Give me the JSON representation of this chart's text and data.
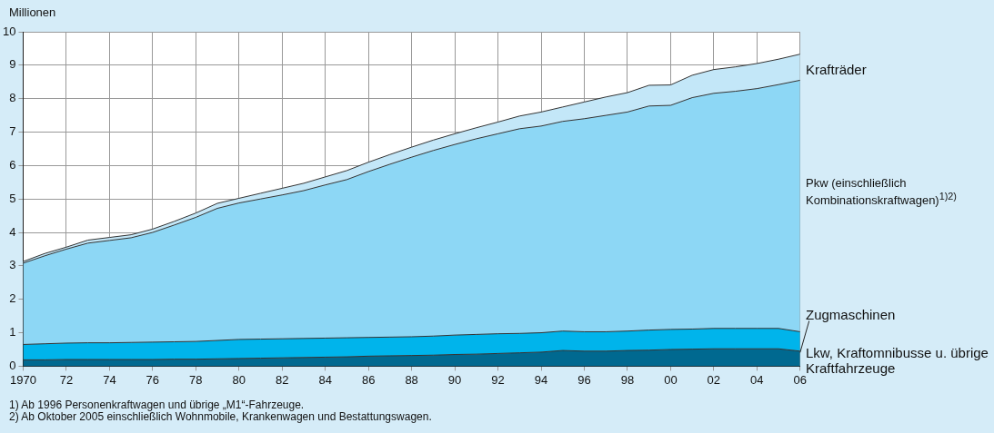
{
  "chart_data": {
    "type": "area",
    "stacked": true,
    "ylabel": "Millionen",
    "x": [
      1970,
      1971,
      1972,
      1973,
      1974,
      1975,
      1976,
      1977,
      1978,
      1979,
      1980,
      1981,
      1982,
      1983,
      1984,
      1985,
      1986,
      1987,
      1988,
      1989,
      1990,
      1991,
      1992,
      1993,
      1994,
      1995,
      1996,
      1997,
      1998,
      1999,
      2000,
      2001,
      2002,
      2003,
      2004,
      2005,
      2006
    ],
    "series": [
      {
        "name": "Lkw, Kraftomnibusse u. übrige Kraftfahrzeuge",
        "color": "#006990",
        "values": [
          0.19,
          0.19,
          0.2,
          0.2,
          0.2,
          0.2,
          0.2,
          0.21,
          0.21,
          0.22,
          0.23,
          0.24,
          0.25,
          0.26,
          0.27,
          0.28,
          0.3,
          0.31,
          0.32,
          0.33,
          0.35,
          0.36,
          0.38,
          0.4,
          0.42,
          0.47,
          0.45,
          0.45,
          0.47,
          0.48,
          0.5,
          0.51,
          0.52,
          0.52,
          0.52,
          0.52,
          0.45
        ]
      },
      {
        "name": "Zugmaschinen",
        "color": "#00b4eb",
        "values": [
          0.46,
          0.48,
          0.49,
          0.5,
          0.5,
          0.51,
          0.52,
          0.52,
          0.53,
          0.55,
          0.57,
          0.57,
          0.57,
          0.57,
          0.57,
          0.57,
          0.56,
          0.56,
          0.56,
          0.57,
          0.58,
          0.59,
          0.59,
          0.58,
          0.58,
          0.58,
          0.58,
          0.58,
          0.58,
          0.6,
          0.6,
          0.6,
          0.61,
          0.61,
          0.61,
          0.61,
          0.58
        ]
      },
      {
        "name": "Pkw (einschließlich Kombinationskraftwagen)$^{1)2)}$",
        "color": "#8dd7f5",
        "values": [
          2.43,
          2.63,
          2.81,
          2.98,
          3.06,
          3.13,
          3.28,
          3.49,
          3.71,
          3.95,
          4.08,
          4.19,
          4.3,
          4.42,
          4.58,
          4.73,
          4.96,
          5.17,
          5.37,
          5.55,
          5.7,
          5.85,
          5.98,
          6.12,
          6.18,
          6.27,
          6.37,
          6.47,
          6.55,
          6.7,
          6.7,
          6.92,
          7.03,
          7.09,
          7.17,
          7.29,
          7.52
        ]
      },
      {
        "name": "Krafträder",
        "color": "#c3e7f8",
        "values": [
          0.05,
          0.07,
          0.06,
          0.09,
          0.09,
          0.09,
          0.1,
          0.11,
          0.13,
          0.15,
          0.14,
          0.17,
          0.2,
          0.22,
          0.24,
          0.27,
          0.28,
          0.29,
          0.3,
          0.31,
          0.32,
          0.33,
          0.35,
          0.38,
          0.42,
          0.43,
          0.5,
          0.55,
          0.58,
          0.62,
          0.61,
          0.67,
          0.71,
          0.73,
          0.75,
          0.76,
          0.78
        ]
      }
    ],
    "xlim": [
      1970,
      2006
    ],
    "xticks": [
      {
        "value": 1970,
        "label": "1970"
      },
      {
        "value": 1972,
        "label": "72"
      },
      {
        "value": 1974,
        "label": "74"
      },
      {
        "value": 1976,
        "label": "76"
      },
      {
        "value": 1978,
        "label": "78"
      },
      {
        "value": 1980,
        "label": "80"
      },
      {
        "value": 1982,
        "label": "82"
      },
      {
        "value": 1984,
        "label": "84"
      },
      {
        "value": 1986,
        "label": "86"
      },
      {
        "value": 1988,
        "label": "88"
      },
      {
        "value": 1990,
        "label": "90"
      },
      {
        "value": 1992,
        "label": "92"
      },
      {
        "value": 1994,
        "label": "94"
      },
      {
        "value": 1996,
        "label": "96"
      },
      {
        "value": 1998,
        "label": "98"
      },
      {
        "value": 2000,
        "label": "00"
      },
      {
        "value": 2002,
        "label": "02"
      },
      {
        "value": 2004,
        "label": "04"
      },
      {
        "value": 2006,
        "label": "06"
      }
    ],
    "ylim": [
      0,
      10
    ],
    "yticks": [
      0,
      1,
      2,
      3,
      4,
      5,
      6,
      7,
      8,
      9,
      10
    ],
    "grid": true,
    "legend": false,
    "annotations": [
      "1) Ab 1996 Personenkraftwagen und übrige „M1“-Fahrzeuge.",
      "2) Ab Oktober 2005 einschließlich Wohnmobile, Krankenwagen und Bestattungswagen."
    ]
  }
}
